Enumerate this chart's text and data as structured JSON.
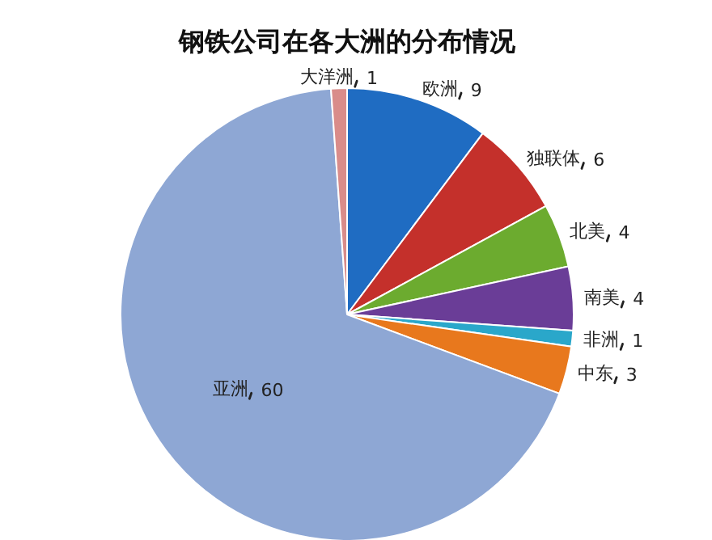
{
  "chart_data": {
    "type": "pie",
    "title": "钢铁公司在各大洲的分布情况",
    "categories": [
      "欧洲",
      "独联体",
      "北美",
      "南美",
      "非洲",
      "中东",
      "亚洲",
      "大洋洲"
    ],
    "values": [
      9,
      6,
      4,
      4,
      1,
      3,
      60,
      1
    ],
    "colors": [
      "#1f6cc2",
      "#c4302b",
      "#6cab2f",
      "#6a3d97",
      "#2aa7ca",
      "#e8781d",
      "#8ea7d4",
      "#d98c8a"
    ],
    "data_labels": true
  }
}
